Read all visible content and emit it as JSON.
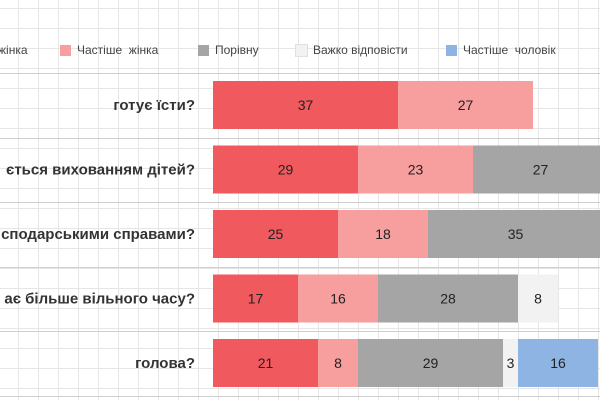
{
  "chart_data": {
    "type": "bar",
    "orientation": "horizontal",
    "stacked": true,
    "grid": true,
    "legend_position": "top",
    "categories": [
      "готує їсти?",
      "ється вихованням дітей?",
      "сподарськими справами?",
      "ає більше вільного часу?",
      "голова?"
    ],
    "series": [
      {
        "name": "жінка",
        "color": "#f05a5e",
        "values": [
          37,
          29,
          25,
          17,
          21
        ]
      },
      {
        "name": "Частіше  жінка",
        "color": "#f79e9e",
        "values": [
          27,
          23,
          18,
          16,
          8
        ]
      },
      {
        "name": "Порівну",
        "color": "#a5a5a5",
        "values": [
          null,
          27,
          35,
          28,
          29
        ]
      },
      {
        "name": "Важко відповісти",
        "color": "#f2f2f2",
        "values": [
          null,
          null,
          null,
          8,
          3
        ]
      },
      {
        "name": "Частіше  чоловік",
        "color": "#8db4e2",
        "values": [
          null,
          null,
          null,
          null,
          16
        ]
      }
    ]
  }
}
